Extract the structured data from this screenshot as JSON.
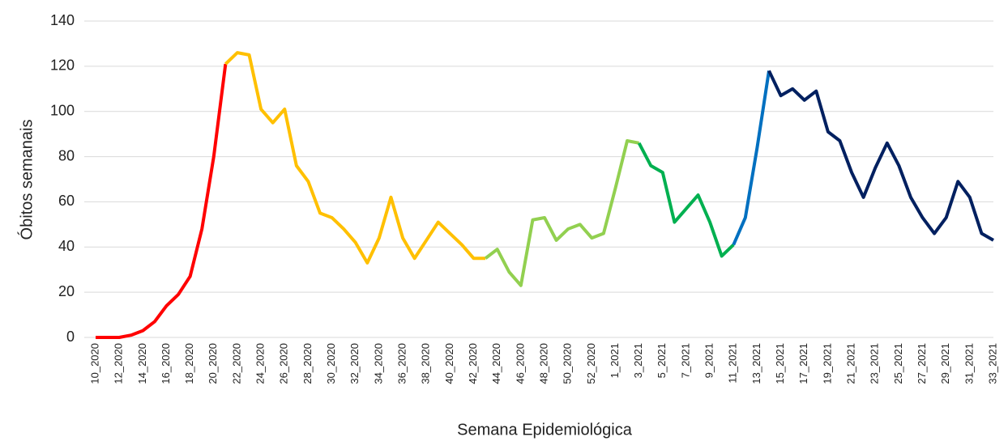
{
  "chart_data": {
    "type": "line",
    "x_label": "Semana Epidemiológica",
    "y_label": "Óbitos semanais",
    "categories": [
      "10_2020",
      null,
      "12_2020",
      null,
      "14_2020",
      null,
      "16_2020",
      null,
      "18_2020",
      null,
      "20_2020",
      null,
      "22_2020",
      null,
      "24_2020",
      null,
      "26_2020",
      null,
      "28_2020",
      null,
      "30_2020",
      null,
      "32_2020",
      null,
      "34_2020",
      null,
      "36_2020",
      null,
      "38_2020",
      null,
      "40_2020",
      null,
      "42_2020",
      null,
      "44_2020",
      null,
      "46_2020",
      null,
      "48_2020",
      null,
      "50_2020",
      null,
      "52_2020",
      null,
      "1_2021",
      null,
      "3_2021",
      null,
      "5_2021",
      null,
      "7_2021",
      null,
      "9_2021",
      null,
      "11_2021",
      null,
      "13_2021",
      null,
      "15_2021",
      null,
      "17_2021",
      null,
      "19_2021",
      null,
      "21_2021",
      null,
      "23_2021",
      null,
      "25_2021",
      null,
      "27_2021",
      null,
      "29_2021",
      null,
      "31_2021",
      null,
      "33_2021"
    ],
    "series": [
      {
        "color": "#ff0000",
        "values": [
          0,
          0,
          0,
          1,
          3,
          7,
          14,
          19,
          27,
          48,
          80,
          121,
          null,
          null,
          null,
          null,
          null,
          null,
          null,
          null,
          null,
          null,
          null,
          null,
          null,
          null,
          null,
          null,
          null,
          null,
          null,
          null,
          null,
          null,
          null,
          null,
          null,
          null,
          null,
          null,
          null,
          null,
          null,
          null,
          null,
          null,
          null,
          null,
          null,
          null,
          null,
          null,
          null,
          null,
          null,
          null,
          null,
          null,
          null,
          null,
          null,
          null,
          null,
          null,
          null,
          null,
          null,
          null,
          null,
          null,
          null,
          null,
          null,
          null,
          null,
          null,
          null
        ]
      },
      {
        "color": "#ffc000",
        "values": [
          null,
          null,
          null,
          null,
          null,
          null,
          null,
          null,
          null,
          null,
          null,
          121,
          126,
          125,
          101,
          95,
          101,
          76,
          69,
          55,
          53,
          48,
          42,
          33,
          44,
          62,
          44,
          35,
          43,
          51,
          46,
          41,
          35,
          35,
          null,
          null,
          null,
          null,
          null,
          null,
          null,
          null,
          null,
          null,
          null,
          null,
          null,
          null,
          null,
          null,
          null,
          null,
          null,
          null,
          null,
          null,
          null,
          null,
          null,
          null,
          null,
          null,
          null,
          null,
          null,
          null,
          null,
          null,
          null,
          null,
          null,
          null,
          null,
          null,
          null,
          null,
          null
        ]
      },
      {
        "color": "#92d050",
        "values": [
          null,
          null,
          null,
          null,
          null,
          null,
          null,
          null,
          null,
          null,
          null,
          null,
          null,
          null,
          null,
          null,
          null,
          null,
          null,
          null,
          null,
          null,
          null,
          null,
          null,
          null,
          null,
          null,
          null,
          null,
          null,
          null,
          null,
          35,
          39,
          29,
          23,
          52,
          53,
          43,
          48,
          50,
          44,
          46,
          66,
          87,
          86,
          null,
          null,
          null,
          null,
          null,
          null,
          null,
          null,
          null,
          null,
          null,
          null,
          null,
          null,
          null,
          null,
          null,
          null,
          null,
          null,
          null,
          null,
          null,
          null,
          null,
          null,
          null,
          null,
          null,
          null
        ]
      },
      {
        "color": "#00b050",
        "values": [
          null,
          null,
          null,
          null,
          null,
          null,
          null,
          null,
          null,
          null,
          null,
          null,
          null,
          null,
          null,
          null,
          null,
          null,
          null,
          null,
          null,
          null,
          null,
          null,
          null,
          null,
          null,
          null,
          null,
          null,
          null,
          null,
          null,
          null,
          null,
          null,
          null,
          null,
          null,
          null,
          null,
          null,
          null,
          null,
          null,
          null,
          86,
          76,
          73,
          51,
          57,
          63,
          51,
          36,
          41,
          null,
          null,
          null,
          null,
          null,
          null,
          null,
          null,
          null,
          null,
          null,
          null,
          null,
          null,
          null,
          null,
          null,
          null,
          null,
          null,
          null,
          null
        ]
      },
      {
        "color": "#0070c0",
        "values": [
          null,
          null,
          null,
          null,
          null,
          null,
          null,
          null,
          null,
          null,
          null,
          null,
          null,
          null,
          null,
          null,
          null,
          null,
          null,
          null,
          null,
          null,
          null,
          null,
          null,
          null,
          null,
          null,
          null,
          null,
          null,
          null,
          null,
          null,
          null,
          null,
          null,
          null,
          null,
          null,
          null,
          null,
          null,
          null,
          null,
          null,
          null,
          null,
          null,
          null,
          null,
          null,
          null,
          null,
          41,
          53,
          84,
          118,
          null,
          null,
          null,
          null,
          null,
          null,
          null,
          null,
          null,
          null,
          null,
          null,
          null,
          null,
          null,
          null,
          null,
          null,
          null
        ]
      },
      {
        "color": "#002060",
        "values": [
          null,
          null,
          null,
          null,
          null,
          null,
          null,
          null,
          null,
          null,
          null,
          null,
          null,
          null,
          null,
          null,
          null,
          null,
          null,
          null,
          null,
          null,
          null,
          null,
          null,
          null,
          null,
          null,
          null,
          null,
          null,
          null,
          null,
          null,
          null,
          null,
          null,
          null,
          null,
          null,
          null,
          null,
          null,
          null,
          null,
          null,
          null,
          null,
          null,
          null,
          null,
          null,
          null,
          null,
          null,
          null,
          null,
          118,
          107,
          110,
          105,
          109,
          91,
          87,
          73,
          62,
          75,
          86,
          76,
          62,
          53,
          46,
          53,
          69,
          62,
          46,
          43
        ]
      }
    ],
    "ylim": [
      0,
      140
    ],
    "yticks": [
      0,
      20,
      40,
      60,
      80,
      100,
      120,
      140
    ],
    "grid": true
  }
}
